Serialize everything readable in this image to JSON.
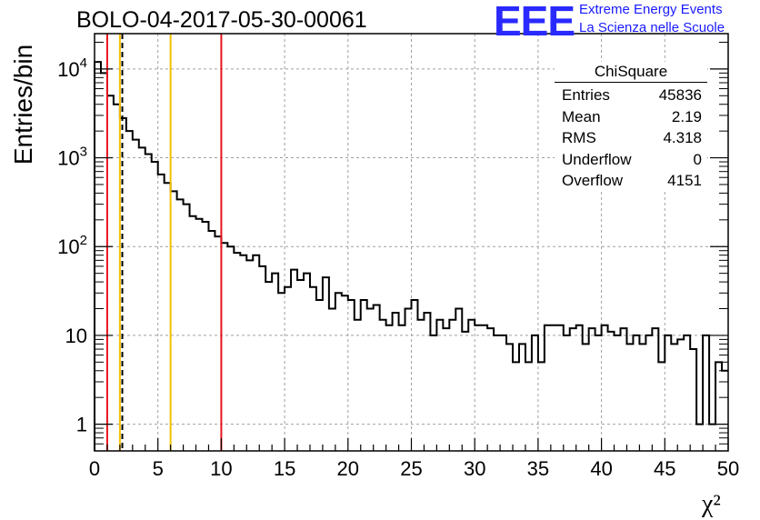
{
  "header": {
    "title": "BOLO-04-2017-05-30-00061"
  },
  "logo": {
    "mark": "EEE",
    "line1": "Extreme Energy Events",
    "line2": "La Scienza nelle Scuole"
  },
  "stats_box": {
    "name": "ChiSquare",
    "rows": [
      {
        "label": "Entries",
        "value": "45836"
      },
      {
        "label": "Mean",
        "value": "2.19"
      },
      {
        "label": "RMS",
        "value": "4.318"
      },
      {
        "label": "Underflow",
        "value": "0"
      },
      {
        "label": "Overflow",
        "value": "4151"
      }
    ]
  },
  "colors": {
    "histogram": "#000000",
    "red_line": "#e8141c",
    "yellow_line": "#f5c000",
    "grid": "#a0a0a0",
    "logo": "#2a2aff"
  },
  "chart_data": {
    "type": "histogram",
    "title": "BOLO-04-2017-05-30-00061",
    "xlabel": "χ²",
    "ylabel": "Entries/bin",
    "xlim": [
      0,
      50
    ],
    "ylim": [
      0.5,
      25000
    ],
    "yscale": "log",
    "grid": true,
    "bin_width": 0.5,
    "x_ticks": [
      0,
      5,
      10,
      15,
      20,
      25,
      30,
      35,
      40,
      45,
      50
    ],
    "x_tick_labels": [
      "0",
      "5",
      "10",
      "15",
      "20",
      "25",
      "30",
      "35",
      "40",
      "45",
      "50"
    ],
    "y_ticks": [
      1,
      10,
      100,
      1000,
      10000
    ],
    "y_tick_labels": [
      {
        "base": "1",
        "exp": ""
      },
      {
        "base": "10",
        "exp": ""
      },
      {
        "base": "10",
        "exp": "2"
      },
      {
        "base": "10",
        "exp": "3"
      },
      {
        "base": "10",
        "exp": "4"
      }
    ],
    "bin_contents": [
      12000,
      9000,
      5000,
      4000,
      2800,
      2000,
      1600,
      1300,
      1100,
      900,
      650,
      520,
      420,
      340,
      300,
      220,
      205,
      190,
      150,
      130,
      110,
      100,
      85,
      80,
      70,
      80,
      60,
      40,
      50,
      30,
      35,
      55,
      42,
      50,
      35,
      25,
      45,
      20,
      30,
      28,
      25,
      15,
      25,
      20,
      22,
      15,
      13,
      18,
      13,
      20,
      25,
      15,
      18,
      10,
      15,
      12,
      15,
      20,
      11,
      15,
      13,
      13,
      12,
      10,
      10,
      8,
      5,
      8,
      5,
      10,
      5,
      13,
      13,
      13,
      10,
      12,
      13,
      8,
      12,
      10,
      13,
      11,
      10,
      12,
      8,
      10,
      8,
      10,
      12,
      5,
      10,
      8,
      9,
      10,
      7,
      1,
      10,
      1,
      5,
      4
    ],
    "vertical_lines": [
      {
        "x": 1.0,
        "color": "red",
        "style": "solid"
      },
      {
        "x": 2.0,
        "color": "yellow",
        "style": "solid"
      },
      {
        "x": 2.19,
        "color": "black",
        "style": "dashed"
      },
      {
        "x": 6.0,
        "color": "yellow",
        "style": "solid"
      },
      {
        "x": 10.0,
        "color": "red",
        "style": "solid"
      }
    ]
  }
}
